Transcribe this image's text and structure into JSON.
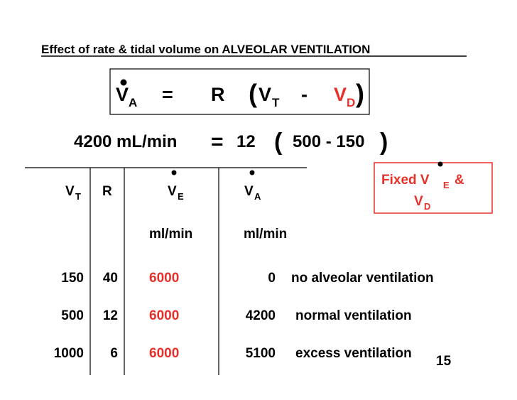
{
  "title": "Effect of rate & tidal volume on ALVEOLAR VENTILATION",
  "equation": {
    "lhs": "V",
    "lhs_sub": "A",
    "equals": "=",
    "rate": "R",
    "open": "(",
    "vt": "V",
    "vt_sub": "T",
    "minus": "-",
    "vd": "V",
    "vd_sub": "D",
    "close": ")"
  },
  "example": {
    "value": "4200 mL/min",
    "equals": "=",
    "rate": "12",
    "open": "(",
    "expr": "500 - 150",
    "close": ")"
  },
  "table": {
    "headers": [
      {
        "main": "V",
        "sub": "T"
      },
      {
        "main": "R"
      },
      {
        "main": "V",
        "sub": "E"
      },
      {
        "main": "V",
        "sub": "A"
      }
    ],
    "units": [
      "ml/min",
      "ml/min"
    ],
    "rows": [
      [
        "150",
        "40",
        "6000",
        "0",
        "no alveolar ventilation"
      ],
      [
        "500",
        "12",
        "6000",
        "4200",
        "normal ventilation"
      ],
      [
        "1000",
        "6",
        "6000",
        "5100",
        "excess ventilation"
      ]
    ]
  },
  "note": {
    "fixed": "Fixed V",
    "sub1": "E",
    "amp": "&",
    "line2": "V",
    "sub2": "D"
  },
  "page_number": "15"
}
